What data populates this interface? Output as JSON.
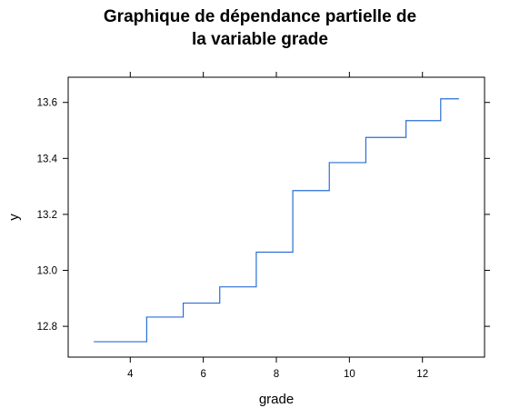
{
  "chart_data": {
    "type": "line",
    "title_lines": [
      "Graphique de dépendance partielle de",
      "la variable grade"
    ],
    "xlabel": "grade",
    "ylabel": "y",
    "xlim": [
      2.3,
      13.7
    ],
    "ylim": [
      12.69,
      13.69
    ],
    "xticks": [
      4,
      6,
      8,
      10,
      12
    ],
    "yticks": [
      12.8,
      13.0,
      13.2,
      13.4,
      13.6
    ],
    "ytick_labels": [
      "12.8",
      "13.0",
      "13.2",
      "13.4",
      "13.6"
    ],
    "grid": false,
    "step": true,
    "color": "#2a6ed4",
    "series": [
      {
        "x": [
          3.0,
          4.45,
          4.45,
          5.45,
          5.45,
          6.45,
          6.45,
          7.45,
          7.45,
          8.45,
          8.45,
          9.45,
          9.45,
          10.45,
          10.45,
          11.55,
          11.55,
          12.5,
          12.5,
          13.0
        ],
        "y": [
          12.745,
          12.745,
          12.833,
          12.833,
          12.883,
          12.883,
          12.941,
          12.941,
          13.065,
          13.065,
          13.285,
          13.285,
          13.385,
          13.385,
          13.475,
          13.475,
          13.535,
          13.535,
          13.613,
          13.613
        ]
      }
    ]
  }
}
